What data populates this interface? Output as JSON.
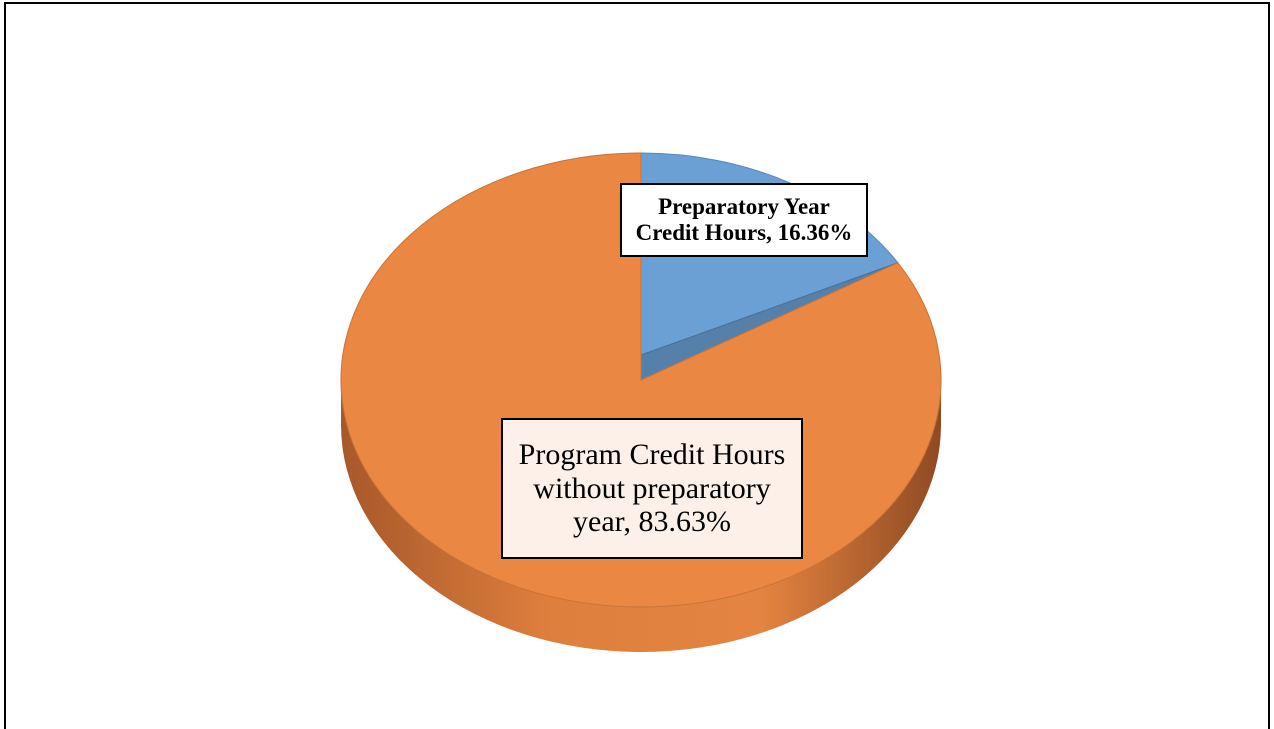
{
  "chart_data": {
    "type": "pie3d",
    "values": [
      16.36,
      83.63
    ],
    "value_labels": [
      "Preparatory Year Credit Hours, 16.36%",
      "Program Credit Hours without preparatory year, 83.63%"
    ],
    "colors": [
      "#6aa0d4",
      "#ea8742"
    ]
  }
}
